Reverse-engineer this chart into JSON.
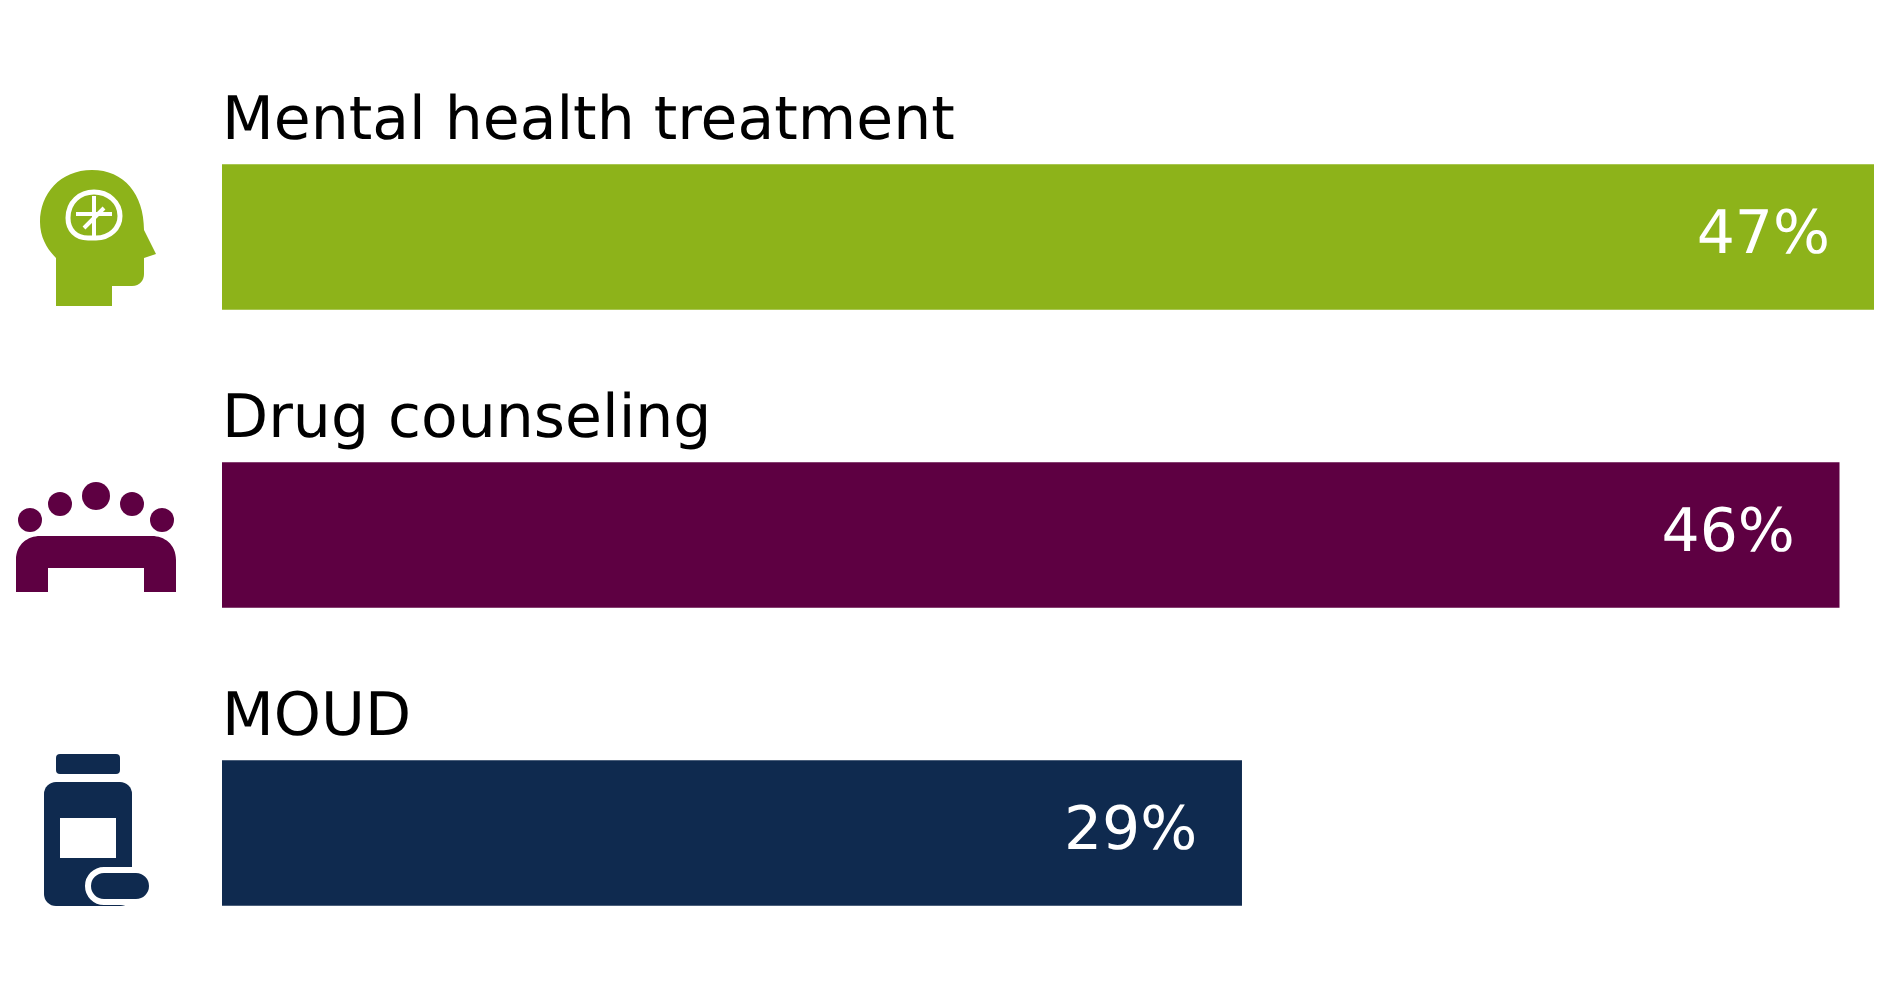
{
  "chart_data": {
    "type": "bar",
    "orientation": "horizontal",
    "categories": [
      "Mental health treatment",
      "Drug counseling",
      "MOUD"
    ],
    "values": [
      47,
      46,
      29
    ],
    "colors": [
      "#8db31a",
      "#5e0042",
      "#0f2a4f"
    ],
    "value_labels": [
      "47%",
      "46%",
      "29%"
    ],
    "legend": false
  }
}
